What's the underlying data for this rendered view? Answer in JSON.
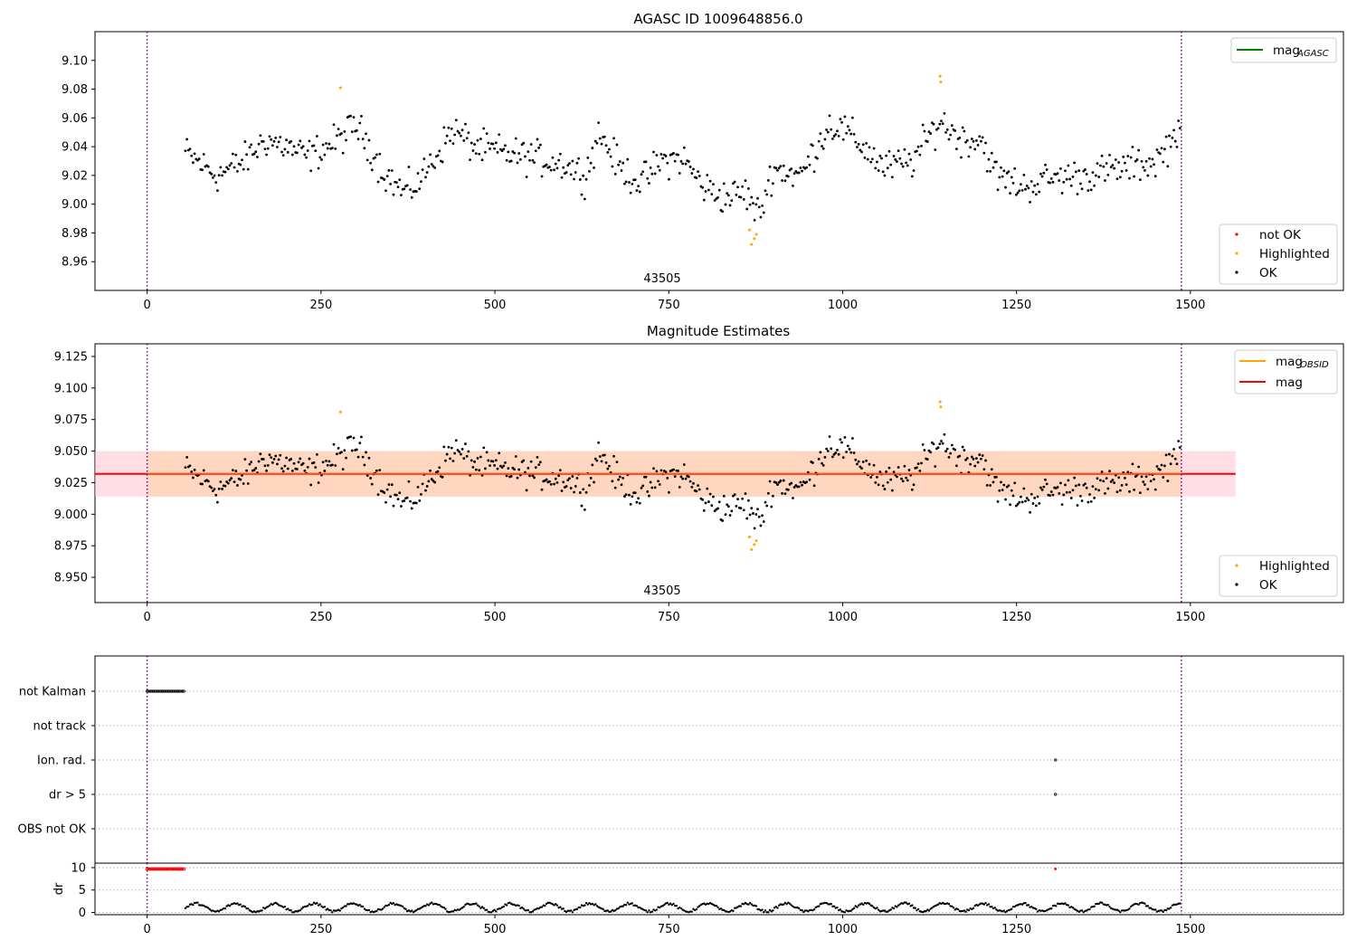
{
  "figure": {
    "title": "AGASC ID 1009648856.0",
    "obsid_label": "43505"
  },
  "chart_data": [
    {
      "type": "scatter",
      "title": "AGASC ID 1009648856.0",
      "xlim": [
        -75,
        1720
      ],
      "ylim": [
        8.94,
        9.12
      ],
      "xticks": [
        0,
        250,
        500,
        750,
        1000,
        1250,
        1500
      ],
      "yticks": [
        8.96,
        8.98,
        9.0,
        9.02,
        9.04,
        9.06,
        9.08,
        9.1
      ],
      "ytick_decimals": 2,
      "obsid_label": "43505",
      "vlines": [
        0,
        1487
      ],
      "legend_upper": [
        {
          "name": "mag_AGASC",
          "text": "mag",
          "sub": "AGASC",
          "color": "#008000"
        }
      ],
      "legend_lower": [
        {
          "name": "not OK",
          "color": "#ff0000"
        },
        {
          "name": "Highlighted",
          "color": "#ffa500"
        },
        {
          "name": "OK",
          "color": "#000000"
        }
      ],
      "series": [
        {
          "name": "OK",
          "color": "#000000",
          "x_start": 55,
          "x_end": 1487,
          "x_step": 2.2,
          "trend": [
            [
              55,
              9.036
            ],
            [
              100,
              9.02
            ],
            [
              140,
              9.03
            ],
            [
              170,
              9.045
            ],
            [
              200,
              9.04
            ],
            [
              230,
              9.033
            ],
            [
              270,
              9.043
            ],
            [
              300,
              9.055
            ],
            [
              320,
              9.04
            ],
            [
              340,
              9.022
            ],
            [
              370,
              9.008
            ],
            [
              390,
              9.015
            ],
            [
              410,
              9.03
            ],
            [
              440,
              9.052
            ],
            [
              470,
              9.04
            ],
            [
              520,
              9.035
            ],
            [
              560,
              9.032
            ],
            [
              600,
              9.028
            ],
            [
              630,
              9.02
            ],
            [
              650,
              9.05
            ],
            [
              680,
              9.025
            ],
            [
              710,
              9.015
            ],
            [
              740,
              9.03
            ],
            [
              770,
              9.032
            ],
            [
              800,
              9.012
            ],
            [
              830,
              9.005
            ],
            [
              860,
              9.008
            ],
            [
              880,
              8.992
            ],
            [
              900,
              9.025
            ],
            [
              940,
              9.02
            ],
            [
              980,
              9.055
            ],
            [
              1000,
              9.052
            ],
            [
              1030,
              9.04
            ],
            [
              1060,
              9.025
            ],
            [
              1100,
              9.03
            ],
            [
              1140,
              9.058
            ],
            [
              1170,
              9.045
            ],
            [
              1200,
              9.045
            ],
            [
              1220,
              9.02
            ],
            [
              1260,
              9.012
            ],
            [
              1300,
              9.018
            ],
            [
              1350,
              9.02
            ],
            [
              1400,
              9.025
            ],
            [
              1450,
              9.03
            ],
            [
              1475,
              9.045
            ],
            [
              1487,
              9.06
            ]
          ],
          "jitter": 0.009
        },
        {
          "name": "Highlighted",
          "color": "#ffa500",
          "x": [
            278,
            866,
            869,
            873,
            876,
            1140,
            1141
          ],
          "y": [
            9.081,
            8.982,
            8.972,
            8.976,
            8.979,
            9.089,
            9.085
          ]
        }
      ]
    },
    {
      "type": "scatter",
      "title": "Magnitude Estimates",
      "xlim": [
        -75,
        1720
      ],
      "ylim": [
        8.93,
        9.135
      ],
      "xticks": [
        0,
        250,
        500,
        750,
        1000,
        1250,
        1500
      ],
      "yticks": [
        8.95,
        8.975,
        9.0,
        9.025,
        9.05,
        9.075,
        9.1,
        9.125
      ],
      "ytick_decimals": 3,
      "obsid_label": "43505",
      "vlines": [
        0,
        1487
      ],
      "mag_line": {
        "y": 9.032,
        "x": [
          -75,
          1565
        ],
        "color": "#ff0000"
      },
      "band_outer": {
        "y": [
          9.014,
          9.05
        ],
        "x": [
          -75,
          1565
        ],
        "color": "#ffc0cb"
      },
      "band_inner": {
        "y": [
          9.014,
          9.05
        ],
        "x": [
          -75,
          1565
        ],
        "color": "#ffd3b6"
      },
      "legend_upper": [
        {
          "name": "mag_OBSID",
          "text": "mag",
          "sub": "OBSID",
          "color": "#ffa500"
        },
        {
          "name": "mag",
          "text": "mag",
          "sub": "",
          "color": "#ff0000"
        }
      ],
      "legend_lower": [
        {
          "name": "Highlighted",
          "color": "#ffa500"
        },
        {
          "name": "OK",
          "color": "#000000"
        }
      ]
    },
    {
      "type": "scatter",
      "title": "",
      "xlim": [
        -75,
        1720
      ],
      "xticks": [
        0,
        250,
        500,
        750,
        1000,
        1250,
        1500
      ],
      "vlines": [
        0,
        1487
      ],
      "flag_rows": [
        "not Kalman",
        "not track",
        "Ion. rad.",
        "dr > 5",
        "OBS not OK"
      ],
      "flag_points": [
        {
          "row": "not Kalman",
          "x_start": 0,
          "x_end": 55,
          "x_step": 2.2
        },
        {
          "row": "Ion. rad.",
          "x": [
            1306
          ]
        },
        {
          "row": "dr > 5",
          "x": [
            1306
          ]
        }
      ],
      "dr_panel": {
        "ylabel": "dr",
        "ylim": [
          -0.5,
          11
        ],
        "yticks": [
          0,
          5,
          10
        ],
        "red_points": {
          "x_start": 0,
          "x_end": 55,
          "x_step": 2.2,
          "y": 9.7,
          "extra_x": [
            1306
          ]
        },
        "black_points": {
          "x_start": 55,
          "x_end": 1487,
          "x_step": 2.2,
          "base": 1.1,
          "amp": 0.9
        }
      }
    }
  ]
}
